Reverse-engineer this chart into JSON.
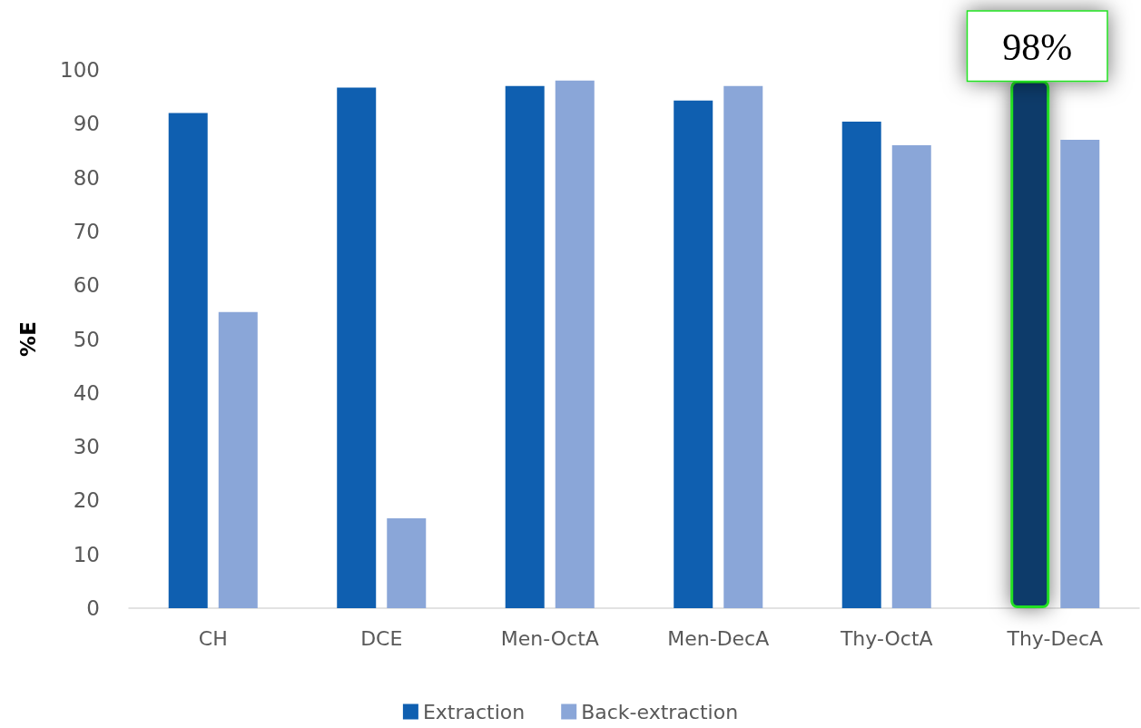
{
  "chart_data": {
    "type": "bar",
    "ylabel": "%E",
    "categories": [
      "CH",
      "DCE",
      "Men-OctA",
      "Men-DecA",
      "Thy-OctA",
      "Thy-DecA"
    ],
    "series": [
      {
        "name": "Extraction",
        "color": "#0f5fb0",
        "colors": [
          "#0f5fb0",
          "#0f5fb0",
          "#0f5fb0",
          "#0f5fb0",
          "#0f5fb0",
          "#0a3a6b"
        ],
        "values": [
          92,
          96.7,
          97,
          94.3,
          90.4,
          98
        ],
        "value_labels": [
          null,
          null,
          null,
          null,
          null,
          "98%"
        ]
      },
      {
        "name": "Back-extraction",
        "color": "#8aa6d8",
        "values": [
          55,
          16.7,
          98,
          97,
          86,
          87
        ]
      }
    ],
    "ylim": [
      0,
      100
    ],
    "yticks": [
      0,
      10,
      20,
      30,
      40,
      50,
      60,
      70,
      80,
      90,
      100
    ],
    "grid": false,
    "legend": "bottom"
  }
}
